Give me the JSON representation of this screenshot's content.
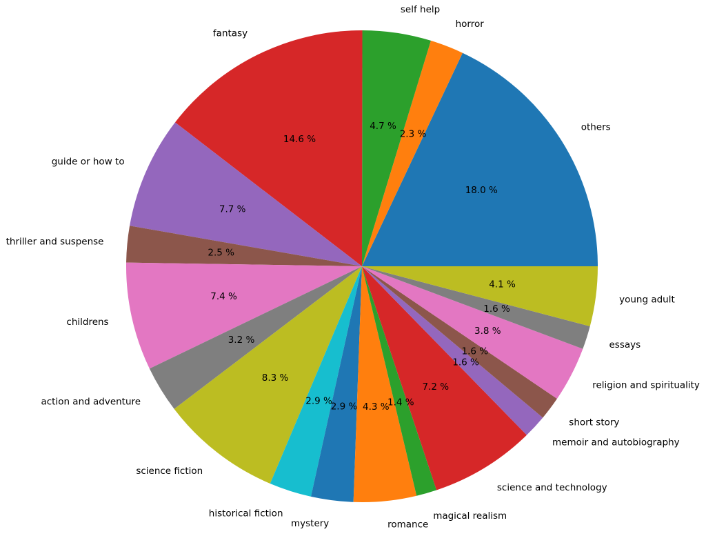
{
  "chart_data": {
    "type": "pie",
    "start_angle_deg": 0,
    "direction": "counterclockwise",
    "pct_format": "{v} %",
    "slices": [
      {
        "label": "others",
        "value": 18.0,
        "color": "#1f77b4"
      },
      {
        "label": "horror",
        "value": 2.3,
        "color": "#ff7f0e"
      },
      {
        "label": "self help",
        "value": 4.7,
        "color": "#2ca02c"
      },
      {
        "label": "fantasy",
        "value": 14.6,
        "color": "#d62728"
      },
      {
        "label": "guide or how to",
        "value": 7.7,
        "color": "#9467bd"
      },
      {
        "label": "thriller and suspense",
        "value": 2.5,
        "color": "#8c564b"
      },
      {
        "label": "childrens",
        "value": 7.4,
        "color": "#e377c2"
      },
      {
        "label": "action and adventure",
        "value": 3.2,
        "color": "#7f7f7f"
      },
      {
        "label": "science fiction",
        "value": 8.3,
        "color": "#bcbd22"
      },
      {
        "label": "historical fiction",
        "value": 2.9,
        "color": "#17becf"
      },
      {
        "label": "mystery",
        "value": 2.9,
        "color": "#1f77b4"
      },
      {
        "label": "romance",
        "value": 4.3,
        "color": "#ff7f0e"
      },
      {
        "label": "magical realism",
        "value": 1.4,
        "color": "#2ca02c"
      },
      {
        "label": "science and technology",
        "value": 7.2,
        "color": "#d62728"
      },
      {
        "label": "memoir and autobiography",
        "value": 1.6,
        "color": "#9467bd"
      },
      {
        "label": "short story",
        "value": 1.6,
        "color": "#8c564b"
      },
      {
        "label": "religion and spirituality",
        "value": 3.8,
        "color": "#e377c2"
      },
      {
        "label": "essays",
        "value": 1.6,
        "color": "#7f7f7f"
      },
      {
        "label": "young adult",
        "value": 4.1,
        "color": "#bcbd22"
      }
    ]
  }
}
